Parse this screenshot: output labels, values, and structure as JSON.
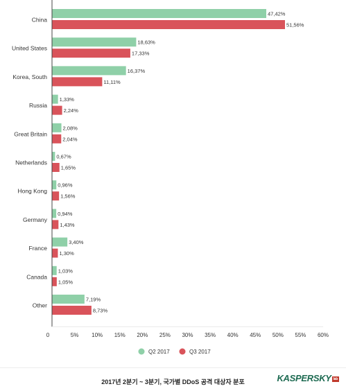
{
  "colors": {
    "q2": "#8fd0a8",
    "q3": "#d9535a",
    "axis": "#444444",
    "grid": "#e8e8e8"
  },
  "chart_data": {
    "type": "bar",
    "orientation": "horizontal",
    "categories": [
      "China",
      "United States",
      "Korea, South",
      "Russia",
      "Great Britain",
      "Netherlands",
      "Hong Kong",
      "Germany",
      "France",
      "Canada",
      "Other"
    ],
    "series": [
      {
        "name": "Q2 2017",
        "values": [
          47.42,
          18.63,
          16.37,
          1.33,
          2.08,
          0.67,
          0.96,
          0.94,
          3.4,
          1.03,
          7.19
        ],
        "labels": [
          "47,42%",
          "18,63%",
          "16,37%",
          "1,33%",
          "2,08%",
          "0,67%",
          "0,96%",
          "0,94%",
          "3,40%",
          "1,03%",
          "7,19%"
        ]
      },
      {
        "name": "Q3 2017",
        "values": [
          51.56,
          17.33,
          11.11,
          2.24,
          2.04,
          1.65,
          1.56,
          1.43,
          1.3,
          1.05,
          8.73
        ],
        "labels": [
          "51,56%",
          "17,33%",
          "11,11%",
          "2,24%",
          "2,04%",
          "1,65%",
          "1,56%",
          "1,43%",
          "1,30%",
          "1,05%",
          "8,73%"
        ]
      }
    ],
    "x_ticks": [
      "0",
      "5%",
      "10%",
      "15%",
      "20%",
      "25%",
      "30%",
      "35%",
      "40%",
      "45%",
      "50%",
      "55%",
      "60%"
    ],
    "xlim": [
      0,
      60
    ],
    "legend_position": "bottom",
    "grid": false
  },
  "caption": "2017년 2분기 ~ 3분기, 국가별 DDoS 공격 대상자 분포",
  "logo": {
    "text": "KASPERSKY",
    "badge": "lab"
  }
}
